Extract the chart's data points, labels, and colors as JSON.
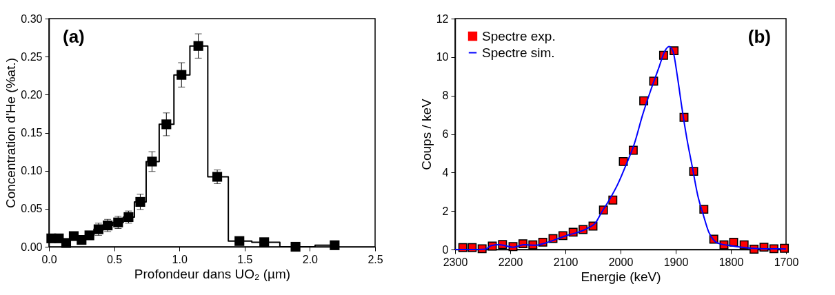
{
  "chart_data": [
    {
      "type": "step",
      "xlabel": "Profondeur dans UO₂ (µm)",
      "ylabel": "Concentration d'He (%at.)",
      "annotations": [
        "(a)"
      ],
      "marker": "square",
      "color": "#000000",
      "x": [
        0.018,
        0.076,
        0.132,
        0.19,
        0.25,
        0.31,
        0.38,
        0.45,
        0.53,
        0.61,
        0.7,
        0.79,
        0.9,
        1.016,
        1.145,
        1.29,
        1.46,
        1.65,
        1.89,
        2.19
      ],
      "values": [
        0.011,
        0.011,
        0.005,
        0.014,
        0.009,
        0.015,
        0.023,
        0.028,
        0.032,
        0.039,
        0.059,
        0.112,
        0.161,
        0.226,
        0.264,
        0.092,
        0.0075,
        0.006,
        0.0,
        0.002
      ],
      "errors": [
        0.004,
        0.004,
        0.004,
        0.004,
        0.004,
        0.005,
        0.008,
        0.008,
        0.008,
        0.008,
        0.01,
        0.013,
        0.015,
        0.016,
        0.016,
        0.009,
        null,
        null,
        null,
        null
      ],
      "xlim": [
        0,
        2.5
      ],
      "xticks": [
        {
          "value": 0,
          "label": "0.0"
        },
        {
          "value": 0.5,
          "label": "0.5"
        },
        {
          "value": 1,
          "label": "1.0"
        },
        {
          "value": 1.5,
          "label": "1.5"
        },
        {
          "value": 2,
          "label": "2.0"
        },
        {
          "value": 2.5,
          "label": "2.5"
        }
      ],
      "ylim": [
        0,
        0.3
      ],
      "yticks": [
        {
          "value": 0,
          "label": "0.00"
        },
        {
          "value": 0.05,
          "label": "0.05"
        },
        {
          "value": 0.1,
          "label": "0.10"
        },
        {
          "value": 0.15,
          "label": "0.15"
        },
        {
          "value": 0.2,
          "label": "0.20"
        },
        {
          "value": 0.25,
          "label": "0.25"
        },
        {
          "value": 0.3,
          "label": "0.30"
        }
      ],
      "grid": false
    },
    {
      "type": "scatter",
      "xlabel": "Energie (keV)",
      "ylabel": "Coups / keV",
      "annotations": [
        "(b)"
      ],
      "legend": "top left",
      "grid": false,
      "xlim": [
        2300,
        1700
      ],
      "xticks": [
        2300,
        2200,
        2100,
        2000,
        1900,
        1800,
        1700
      ],
      "ylim": [
        0,
        12
      ],
      "yticks": [
        0,
        2,
        4,
        6,
        8,
        10,
        12
      ],
      "series": [
        {
          "name": "Spectre exp.",
          "marker": "square",
          "color": "#ff0000",
          "x": [
            2286,
            2269,
            2251,
            2232.5,
            2214,
            2195,
            2177,
            2159,
            2141,
            2122.5,
            2104.5,
            2086,
            2068,
            2050,
            2031,
            2014,
            1995,
            1977,
            1958,
            1940,
            1922,
            1903,
            1885,
            1867.5,
            1849,
            1831,
            1812.5,
            1795,
            1776,
            1758,
            1740,
            1722,
            1703
          ],
          "values": [
            0.1,
            0.1,
            0.04,
            0.18,
            0.26,
            0.15,
            0.3,
            0.24,
            0.38,
            0.57,
            0.72,
            0.9,
            1.04,
            1.22,
            2.05,
            2.57,
            4.57,
            5.16,
            7.73,
            8.75,
            10.09,
            10.33,
            6.87,
            4.06,
            2.09,
            0.54,
            0.24,
            0.38,
            0.24,
            0.02,
            0.12,
            0.04,
            0.06
          ]
        },
        {
          "name": "Spectre sim.",
          "type": "line",
          "color": "#0000ff",
          "x": [
            2300,
            2270,
            2245,
            2235,
            2220,
            2195,
            2175,
            2155,
            2135,
            2115,
            2095,
            2075,
            2060,
            2045,
            2035,
            2020,
            2005,
            1990,
            1975,
            1960,
            1945,
            1930,
            1920,
            1912,
            1905,
            1897,
            1890,
            1880,
            1870,
            1860,
            1850,
            1840,
            1830,
            1820,
            1800,
            1780,
            1760,
            1740,
            1700
          ],
          "values": [
            0,
            0,
            0.02,
            0.2,
            0.25,
            0.12,
            0.25,
            0.22,
            0.35,
            0.55,
            0.75,
            0.92,
            1.1,
            1.4,
            1.9,
            2.6,
            3.4,
            4.4,
            5.5,
            7.0,
            8.3,
            9.5,
            10.3,
            10.55,
            10.3,
            9.0,
            7.6,
            5.8,
            4.3,
            2.8,
            1.8,
            0.9,
            0.45,
            0.3,
            0.2,
            0.12,
            0.06,
            0.04,
            0.03
          ]
        }
      ]
    }
  ]
}
